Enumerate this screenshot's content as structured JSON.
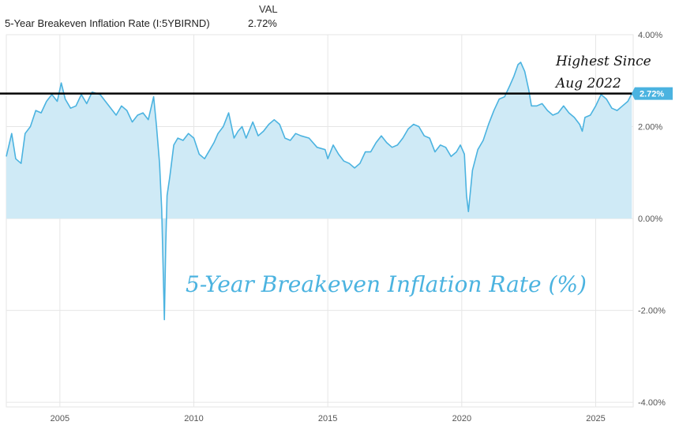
{
  "legend": {
    "col_header": "VAL",
    "series_name": "5-Year Breakeven Inflation Rate (I:5YBIRND)",
    "value": "2.72%"
  },
  "colors": {
    "line": "#4bb3e0",
    "fill": "#cfeaf6",
    "grid": "#e6e6e6",
    "ref_line": "#000000",
    "badge": "#4bb3e0"
  },
  "chart_data": {
    "type": "area",
    "title": "5-Year Breakeven Inflation Rate (%)",
    "xlabel": "",
    "ylabel": "",
    "x_ticks": [
      "2005",
      "2010",
      "2015",
      "2020",
      "2025"
    ],
    "y_ticks": [
      "4.00%",
      "2.00%",
      "0.00%",
      "-2.00%",
      "-4.00%"
    ],
    "xlim": [
      2003.0,
      2026.4
    ],
    "ylim": [
      -4.1,
      4.0
    ],
    "grid": true,
    "last_value_label": "2.72%",
    "reference_line": {
      "value": 2.72
    },
    "annotation": {
      "lines": [
        "Highest Since",
        "Aug 2022"
      ]
    },
    "series": [
      {
        "x": [
          2003.0,
          2003.2,
          2003.35,
          2003.55,
          2003.7,
          2003.9,
          2004.1,
          2004.3,
          2004.5,
          2004.7,
          2004.9,
          2005.05,
          2005.2,
          2005.4,
          2005.6,
          2005.8,
          2006.0,
          2006.2,
          2006.5,
          2006.7,
          2006.9,
          2007.1,
          2007.3,
          2007.5,
          2007.7,
          2007.9,
          2008.1,
          2008.3,
          2008.5,
          2008.6,
          2008.72,
          2008.8,
          2008.85,
          2008.9,
          2008.95,
          2009.0,
          2009.1,
          2009.25,
          2009.4,
          2009.6,
          2009.8,
          2010.0,
          2010.2,
          2010.4,
          2010.6,
          2010.75,
          2010.9,
          2011.1,
          2011.3,
          2011.5,
          2011.65,
          2011.8,
          2011.95,
          2012.2,
          2012.4,
          2012.6,
          2012.8,
          2013.0,
          2013.2,
          2013.4,
          2013.6,
          2013.8,
          2014.0,
          2014.3,
          2014.6,
          2014.9,
          2015.0,
          2015.2,
          2015.4,
          2015.6,
          2015.8,
          2016.0,
          2016.2,
          2016.4,
          2016.6,
          2016.8,
          2017.0,
          2017.2,
          2017.4,
          2017.6,
          2017.8,
          2018.0,
          2018.2,
          2018.4,
          2018.6,
          2018.8,
          2019.0,
          2019.2,
          2019.4,
          2019.6,
          2019.8,
          2019.95,
          2020.1,
          2020.18,
          2020.25,
          2020.4,
          2020.6,
          2020.8,
          2021.0,
          2021.2,
          2021.4,
          2021.6,
          2021.8,
          2021.95,
          2022.1,
          2022.2,
          2022.35,
          2022.5,
          2022.6,
          2022.8,
          2023.0,
          2023.2,
          2023.4,
          2023.6,
          2023.8,
          2024.0,
          2024.2,
          2024.4,
          2024.5,
          2024.6,
          2024.8,
          2025.0,
          2025.2,
          2025.4,
          2025.6,
          2025.8,
          2026.0,
          2026.2,
          2026.35
        ],
        "values": [
          1.35,
          1.85,
          1.3,
          1.2,
          1.85,
          2.0,
          2.35,
          2.3,
          2.55,
          2.7,
          2.55,
          2.95,
          2.6,
          2.4,
          2.45,
          2.7,
          2.5,
          2.75,
          2.7,
          2.55,
          2.4,
          2.25,
          2.45,
          2.35,
          2.1,
          2.25,
          2.3,
          2.15,
          2.65,
          2.05,
          1.2,
          0.2,
          -1.0,
          -2.2,
          -0.6,
          0.5,
          0.9,
          1.6,
          1.75,
          1.7,
          1.85,
          1.75,
          1.4,
          1.3,
          1.5,
          1.65,
          1.85,
          2.0,
          2.3,
          1.75,
          1.9,
          2.0,
          1.75,
          2.1,
          1.8,
          1.9,
          2.05,
          2.15,
          2.05,
          1.75,
          1.7,
          1.85,
          1.8,
          1.75,
          1.55,
          1.5,
          1.3,
          1.6,
          1.4,
          1.25,
          1.2,
          1.1,
          1.2,
          1.45,
          1.45,
          1.65,
          1.8,
          1.65,
          1.55,
          1.6,
          1.75,
          1.95,
          2.05,
          2.0,
          1.8,
          1.75,
          1.45,
          1.6,
          1.55,
          1.35,
          1.45,
          1.6,
          1.4,
          0.5,
          0.15,
          1.05,
          1.5,
          1.7,
          2.05,
          2.35,
          2.6,
          2.65,
          2.9,
          3.1,
          3.35,
          3.4,
          3.2,
          2.8,
          2.45,
          2.45,
          2.5,
          2.35,
          2.25,
          2.3,
          2.45,
          2.3,
          2.2,
          2.05,
          1.9,
          2.2,
          2.25,
          2.45,
          2.7,
          2.6,
          2.4,
          2.35,
          2.45,
          2.55,
          2.72
        ]
      }
    ]
  }
}
